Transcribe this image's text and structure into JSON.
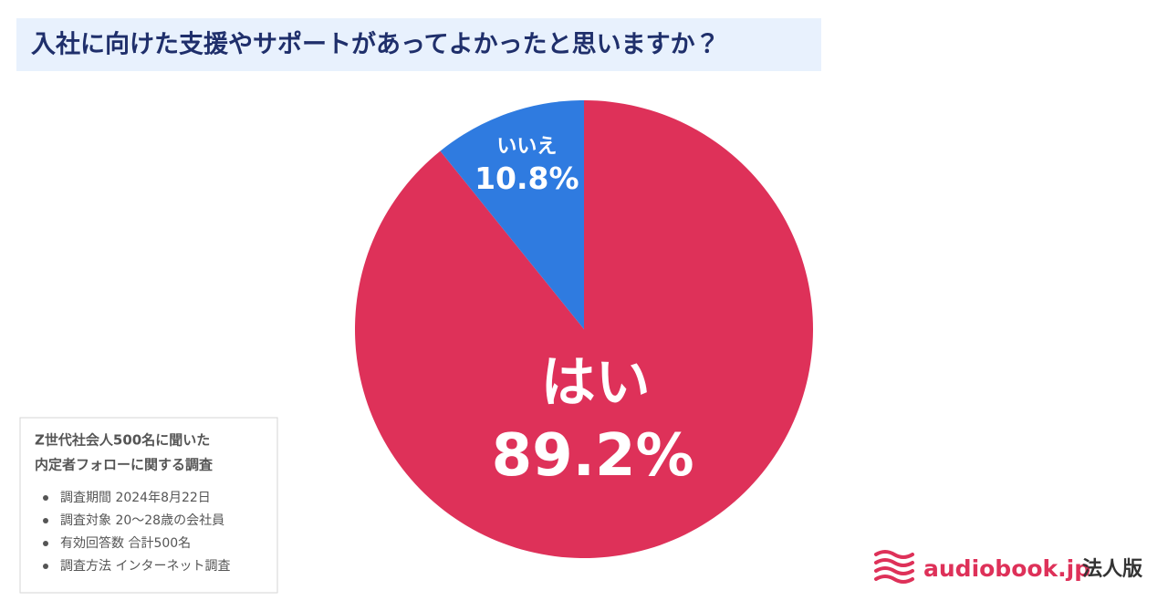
{
  "chart_data": {
    "type": "pie",
    "title": "入社に向けた支援やサポートがあってよかったと思いますか？",
    "categories": [
      "はい",
      "いいえ"
    ],
    "values": [
      89.2,
      10.8
    ],
    "value_labels": [
      "89.2%",
      "10.8%"
    ],
    "colors": [
      "#de3159",
      "#2f7be0"
    ]
  },
  "survey_note": {
    "heading": [
      "Z世代社会人500名に聞いた",
      "内定者フォローに関する調査"
    ],
    "items": [
      "調査期間 2024年8月22日",
      "調査対象 20〜28歳の会社員",
      "有効回答数 合計500名",
      "調査方法 インターネット調査"
    ]
  },
  "logo": {
    "name": "audiobook.jp",
    "edition": "法人版"
  }
}
